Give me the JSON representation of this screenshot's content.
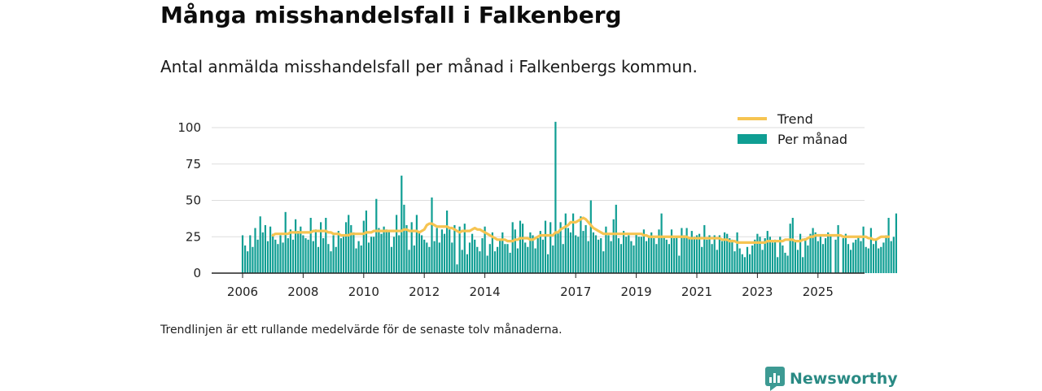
{
  "chart_data": {
    "type": "bar",
    "title": "Många misshandelsfall i Falkenberg",
    "subtitle": "Antal anmälda misshandelsfall per månad i Falkenbergs kommun.",
    "footnote": "Trendlinjen är ett rullande medelvärde för de senaste tolv månaderna.",
    "xlabel": "",
    "ylabel": "",
    "x_start": "2006-01",
    "ylim": [
      0,
      110
    ],
    "yticks": [
      0,
      25,
      50,
      75,
      100
    ],
    "xticks": [
      "2006",
      "2008",
      "2010",
      "2012",
      "2014",
      "2017",
      "2019",
      "2021",
      "2023",
      "2025"
    ],
    "grid": true,
    "legend_position": "top-right",
    "colors": {
      "bars": "#0f9e93",
      "trend": "#f6c451",
      "grid": "#dddddd",
      "axis": "#222222"
    },
    "series": [
      {
        "name": "Per månad",
        "type": "bar",
        "values": [
          26,
          19,
          15,
          26,
          18,
          31,
          23,
          39,
          28,
          33,
          22,
          32,
          27,
          23,
          20,
          26,
          21,
          42,
          24,
          30,
          23,
          37,
          29,
          32,
          26,
          24,
          23,
          38,
          22,
          30,
          18,
          35,
          24,
          38,
          20,
          15,
          26,
          18,
          29,
          24,
          25,
          35,
          40,
          33,
          28,
          17,
          22,
          19,
          36,
          43,
          21,
          25,
          25,
          51,
          31,
          27,
          32,
          30,
          29,
          18,
          25,
          40,
          26,
          67,
          47,
          33,
          16,
          35,
          19,
          40,
          28,
          26,
          23,
          21,
          18,
          52,
          22,
          31,
          21,
          30,
          27,
          43,
          30,
          21,
          33,
          6,
          32,
          16,
          34,
          13,
          21,
          27,
          23,
          18,
          15,
          24,
          32,
          12,
          20,
          28,
          15,
          18,
          23,
          28,
          20,
          20,
          14,
          35,
          30,
          17,
          36,
          34,
          21,
          18,
          28,
          26,
          17,
          24,
          29,
          23,
          36,
          13,
          35,
          19,
          104,
          28,
          35,
          20,
          41,
          31,
          28,
          41,
          26,
          25,
          39,
          29,
          33,
          22,
          50,
          28,
          26,
          23,
          24,
          15,
          32,
          26,
          22,
          37,
          47,
          24,
          20,
          29,
          25,
          26,
          22,
          19,
          27,
          25,
          25,
          30,
          22,
          26,
          28,
          24,
          20,
          30,
          41,
          25,
          23,
          20,
          30,
          24,
          25,
          12,
          31,
          26,
          31,
          24,
          29,
          25,
          26,
          27,
          18,
          33,
          23,
          26,
          20,
          26,
          16,
          26,
          22,
          28,
          27,
          24,
          23,
          15,
          28,
          17,
          13,
          11,
          18,
          13,
          19,
          23,
          27,
          25,
          16,
          24,
          29,
          25,
          21,
          23,
          11,
          25,
          19,
          14,
          12,
          34,
          38,
          22,
          16,
          27,
          11,
          24,
          19,
          27,
          31,
          28,
          22,
          25,
          20,
          24,
          28,
          26,
          0,
          23,
          33,
          0,
          24,
          27,
          20,
          16,
          21,
          23,
          25,
          22,
          32,
          18,
          17,
          31,
          20,
          23,
          17,
          18,
          21,
          26,
          38,
          22,
          25,
          41
        ]
      },
      {
        "name": "Trend",
        "type": "line",
        "values": [
          null,
          null,
          null,
          null,
          null,
          null,
          null,
          null,
          null,
          null,
          null,
          null,
          26,
          27,
          27,
          27,
          27,
          27,
          27,
          28,
          28,
          28,
          28,
          28,
          28,
          28,
          28,
          28,
          29,
          29,
          29,
          29,
          29,
          29,
          28,
          28,
          27,
          27,
          27,
          26,
          26,
          26,
          26,
          27,
          27,
          27,
          27,
          27,
          27,
          28,
          28,
          28,
          29,
          29,
          29,
          29,
          29,
          29,
          29,
          29,
          29,
          29,
          29,
          29,
          30,
          30,
          29,
          29,
          29,
          29,
          28,
          29,
          30,
          33,
          34,
          34,
          33,
          32,
          32,
          32,
          32,
          32,
          31,
          31,
          30,
          29,
          28,
          29,
          29,
          29,
          29,
          30,
          31,
          30,
          30,
          29,
          28,
          27,
          26,
          25,
          24,
          23,
          23,
          23,
          23,
          22,
          22,
          22,
          23,
          23,
          24,
          24,
          24,
          24,
          23,
          23,
          24,
          25,
          26,
          26,
          26,
          26,
          26,
          26,
          28,
          28,
          30,
          31,
          32,
          33,
          35,
          35,
          35,
          36,
          37,
          38,
          37,
          35,
          33,
          31,
          30,
          29,
          28,
          27,
          27,
          27,
          27,
          27,
          27,
          27,
          27,
          27,
          27,
          27,
          27,
          27,
          27,
          27,
          27,
          26,
          26,
          25,
          25,
          25,
          25,
          25,
          25,
          25,
          25,
          25,
          25,
          25,
          25,
          25,
          25,
          25,
          25,
          24,
          24,
          24,
          24,
          24,
          24,
          24,
          24,
          24,
          24,
          24,
          24,
          24,
          23,
          23,
          23,
          22,
          22,
          22,
          21,
          21,
          21,
          21,
          21,
          21,
          21,
          21,
          21,
          21,
          21,
          21,
          22,
          22,
          22,
          22,
          22,
          22,
          22,
          23,
          23,
          23,
          23,
          22,
          22,
          22,
          23,
          23,
          24,
          25,
          25,
          26,
          26,
          26,
          26,
          26,
          26,
          26,
          26,
          26,
          26,
          26,
          25,
          25,
          25,
          25,
          25,
          25,
          25,
          25,
          25,
          25,
          24,
          24,
          23,
          23,
          24,
          25,
          25,
          25,
          25
        ]
      }
    ]
  },
  "brand": {
    "name": "Newsworthy"
  }
}
